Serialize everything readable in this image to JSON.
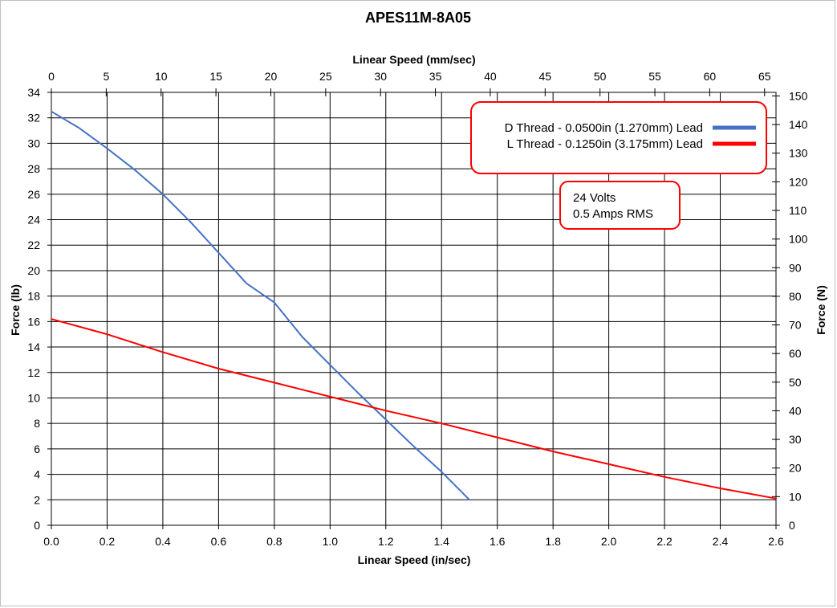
{
  "chart_data": {
    "type": "line",
    "title": "APES11M-8A05",
    "xlabel": "Linear Speed (in/sec)",
    "x2label": "Linear Speed (mm/sec)",
    "ylabel": "Force (lb)",
    "y2label": "Force (N)",
    "xlim": [
      0,
      2.6
    ],
    "x2lim": [
      0,
      66.04
    ],
    "ylim": [
      0,
      34
    ],
    "y2lim": [
      0,
      151.24
    ],
    "x_ticks": [
      "0.0",
      "0.2",
      "0.4",
      "0.6",
      "0.8",
      "1.0",
      "1.2",
      "1.4",
      "1.6",
      "1.8",
      "2.0",
      "2.2",
      "2.4",
      "2.6"
    ],
    "x2_ticks": [
      "0",
      "5",
      "10",
      "15",
      "20",
      "25",
      "30",
      "35",
      "40",
      "45",
      "50",
      "55",
      "60",
      "65"
    ],
    "y_ticks": [
      "0",
      "2",
      "4",
      "6",
      "8",
      "10",
      "12",
      "14",
      "16",
      "18",
      "20",
      "22",
      "24",
      "26",
      "28",
      "30",
      "32",
      "34"
    ],
    "y2_ticks": [
      "0",
      "10",
      "20",
      "30",
      "40",
      "50",
      "60",
      "70",
      "80",
      "90",
      "100",
      "110",
      "120",
      "130",
      "140",
      "150"
    ],
    "grid": true,
    "legend_position": "top-right",
    "series": [
      {
        "name": "D Thread - 0.0500in (1.270mm) Lead",
        "color": "#4472c4",
        "x": [
          0.0,
          0.1,
          0.2,
          0.3,
          0.4,
          0.5,
          0.6,
          0.7,
          0.8,
          0.9,
          1.0,
          1.1,
          1.2,
          1.3,
          1.4,
          1.5
        ],
        "y": [
          32.5,
          31.2,
          29.6,
          27.9,
          26.0,
          23.8,
          21.4,
          19.0,
          17.5,
          14.8,
          12.6,
          10.4,
          8.3,
          6.2,
          4.2,
          2.0
        ]
      },
      {
        "name": "L Thread - 0.1250in (3.175mm) Lead",
        "color": "#ff0000",
        "x": [
          0.0,
          0.2,
          0.4,
          0.6,
          0.8,
          1.0,
          1.2,
          1.4,
          1.6,
          1.8,
          2.0,
          2.2,
          2.4,
          2.6
        ],
        "y": [
          16.2,
          15.0,
          13.6,
          12.3,
          11.2,
          10.1,
          9.0,
          8.0,
          6.9,
          5.8,
          4.8,
          3.8,
          2.9,
          2.1
        ]
      }
    ],
    "annotations": [
      "24 Volts",
      "0.5 Amps RMS"
    ]
  }
}
